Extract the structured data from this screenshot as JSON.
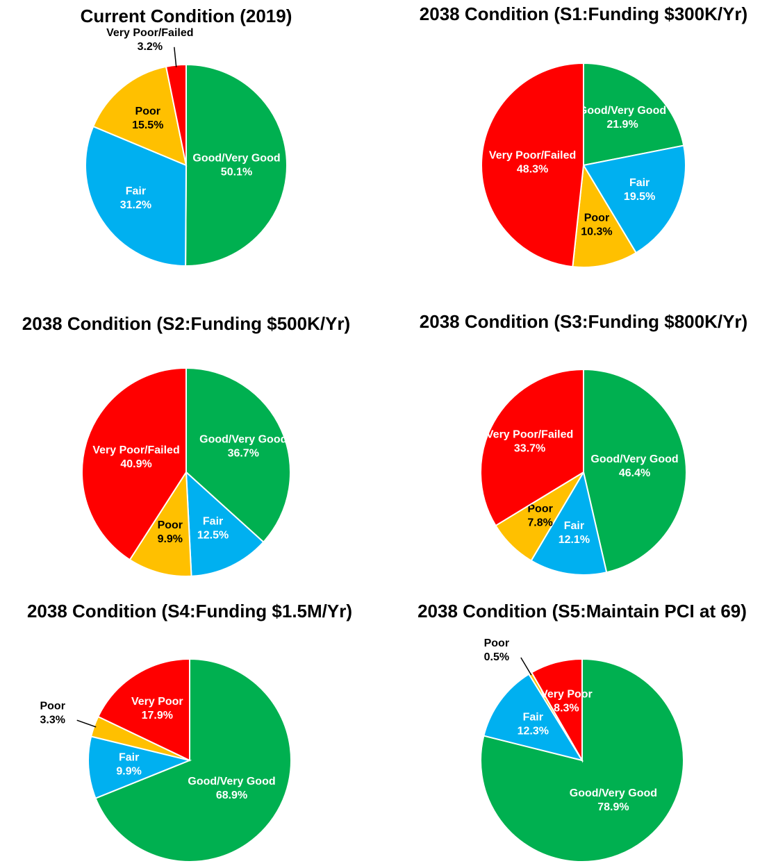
{
  "chart_data": [
    {
      "type": "pie",
      "title": "Current Condition (2019)",
      "categories": [
        "Good/Very Good",
        "Fair",
        "Poor",
        "Very Poor/Failed"
      ],
      "values": [
        50.1,
        31.2,
        15.5,
        3.2
      ],
      "value_labels": [
        "50.1%",
        "31.2%",
        "15.5%",
        "3.2%"
      ],
      "colors": [
        "#00b050",
        "#00b0f0",
        "#ffc000",
        "#ff0000"
      ]
    },
    {
      "type": "pie",
      "title": "2038 Condition (S1:Funding $300K/Yr)",
      "categories": [
        "Good/Very Good",
        "Fair",
        "Poor",
        "Very Poor/Failed"
      ],
      "values": [
        21.9,
        19.5,
        10.3,
        48.3
      ],
      "value_labels": [
        "21.9%",
        "19.5%",
        "10.3%",
        "48.3%"
      ],
      "colors": [
        "#00b050",
        "#00b0f0",
        "#ffc000",
        "#ff0000"
      ]
    },
    {
      "type": "pie",
      "title": "2038 Condition (S2:Funding $500K/Yr)",
      "categories": [
        "Good/Very Good",
        "Fair",
        "Poor",
        "Very Poor/Failed"
      ],
      "values": [
        36.7,
        12.5,
        9.9,
        40.9
      ],
      "value_labels": [
        "36.7%",
        "12.5%",
        "9.9%",
        "40.9%"
      ],
      "colors": [
        "#00b050",
        "#00b0f0",
        "#ffc000",
        "#ff0000"
      ]
    },
    {
      "type": "pie",
      "title": "2038 Condition (S3:Funding $800K/Yr)",
      "categories": [
        "Good/Very Good",
        "Fair",
        "Poor",
        "Very Poor/Failed"
      ],
      "values": [
        46.4,
        12.1,
        7.8,
        33.7
      ],
      "value_labels": [
        "46.4%",
        "12.1%",
        "7.8%",
        "33.7%"
      ],
      "colors": [
        "#00b050",
        "#00b0f0",
        "#ffc000",
        "#ff0000"
      ]
    },
    {
      "type": "pie",
      "title": "2038 Condition (S4:Funding $1.5M/Yr)",
      "categories": [
        "Good/Very Good",
        "Fair",
        "Poor",
        "Very Poor"
      ],
      "values": [
        68.9,
        9.9,
        3.3,
        17.9
      ],
      "value_labels": [
        "68.9%",
        "9.9%",
        "3.3%",
        "17.9%"
      ],
      "colors": [
        "#00b050",
        "#00b0f0",
        "#ffc000",
        "#ff0000"
      ]
    },
    {
      "type": "pie",
      "title": "2038 Condition (S5:Maintain PCI at 69)",
      "categories": [
        "Good/Very Good",
        "Fair",
        "Poor",
        "Very Poor"
      ],
      "values": [
        78.9,
        12.3,
        0.5,
        8.3
      ],
      "value_labels": [
        "78.9%",
        "12.3%",
        "0.5%",
        "8.3%"
      ],
      "colors": [
        "#00b050",
        "#00b0f0",
        "#ffc000",
        "#ff0000"
      ]
    }
  ]
}
